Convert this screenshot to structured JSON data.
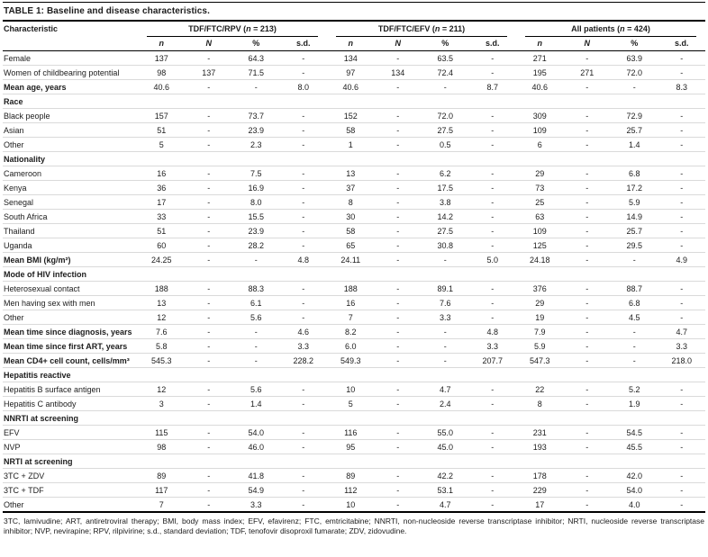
{
  "title": {
    "label": "TABLE 1:",
    "text": " Baseline and disease characteristics."
  },
  "header": {
    "first_col": "Characteristic",
    "groups": [
      {
        "prefix": "TDF/FTC/RPV (",
        "n": "n",
        "suffix": " = 213)"
      },
      {
        "prefix": "TDF/FTC/EFV (",
        "n": "n",
        "suffix": " = 211)"
      },
      {
        "prefix": "All patients (",
        "n": "n",
        "suffix": " = 424)"
      }
    ],
    "sub_headers": [
      {
        "label": "n",
        "key": "n",
        "italic": true
      },
      {
        "label": "N",
        "key": "N",
        "italic": true
      },
      {
        "label": "%",
        "key": "percent",
        "italic": false
      },
      {
        "label": "s.d.",
        "key": "sd",
        "italic": false
      }
    ]
  },
  "rows": [
    {
      "type": "data",
      "bold": false,
      "label": "Female",
      "values": [
        "137",
        "-",
        "64.3",
        "-",
        "134",
        "-",
        "63.5",
        "-",
        "271",
        "-",
        "63.9",
        "-"
      ]
    },
    {
      "type": "data",
      "bold": false,
      "label": "Women of childbearing potential",
      "values": [
        "98",
        "137",
        "71.5",
        "-",
        "97",
        "134",
        "72.4",
        "-",
        "195",
        "271",
        "72.0",
        "-"
      ]
    },
    {
      "type": "data",
      "bold": true,
      "label": "Mean age, years",
      "values": [
        "40.6",
        "-",
        "-",
        "8.0",
        "40.6",
        "-",
        "-",
        "8.7",
        "40.6",
        "-",
        "-",
        "8.3"
      ]
    },
    {
      "type": "section",
      "label": "Race"
    },
    {
      "type": "data",
      "bold": false,
      "label": "Black people",
      "values": [
        "157",
        "-",
        "73.7",
        "-",
        "152",
        "-",
        "72.0",
        "-",
        "309",
        "-",
        "72.9",
        "-"
      ]
    },
    {
      "type": "data",
      "bold": false,
      "label": "Asian",
      "values": [
        "51",
        "-",
        "23.9",
        "-",
        "58",
        "-",
        "27.5",
        "-",
        "109",
        "-",
        "25.7",
        "-"
      ]
    },
    {
      "type": "data",
      "bold": false,
      "label": "Other",
      "values": [
        "5",
        "-",
        "2.3",
        "-",
        "1",
        "-",
        "0.5",
        "-",
        "6",
        "-",
        "1.4",
        "-"
      ]
    },
    {
      "type": "section",
      "label": "Nationality"
    },
    {
      "type": "data",
      "bold": false,
      "label": "Cameroon",
      "values": [
        "16",
        "-",
        "7.5",
        "-",
        "13",
        "-",
        "6.2",
        "-",
        "29",
        "-",
        "6.8",
        "-"
      ]
    },
    {
      "type": "data",
      "bold": false,
      "label": "Kenya",
      "values": [
        "36",
        "-",
        "16.9",
        "-",
        "37",
        "-",
        "17.5",
        "-",
        "73",
        "-",
        "17.2",
        "-"
      ]
    },
    {
      "type": "data",
      "bold": false,
      "label": "Senegal",
      "values": [
        "17",
        "-",
        "8.0",
        "-",
        "8",
        "-",
        "3.8",
        "-",
        "25",
        "-",
        "5.9",
        "-"
      ]
    },
    {
      "type": "data",
      "bold": false,
      "label": "South Africa",
      "values": [
        "33",
        "-",
        "15.5",
        "-",
        "30",
        "-",
        "14.2",
        "-",
        "63",
        "-",
        "14.9",
        "-"
      ]
    },
    {
      "type": "data",
      "bold": false,
      "label": "Thailand",
      "values": [
        "51",
        "-",
        "23.9",
        "-",
        "58",
        "-",
        "27.5",
        "-",
        "109",
        "-",
        "25.7",
        "-"
      ]
    },
    {
      "type": "data",
      "bold": false,
      "label": "Uganda",
      "values": [
        "60",
        "-",
        "28.2",
        "-",
        "65",
        "-",
        "30.8",
        "-",
        "125",
        "-",
        "29.5",
        "-"
      ]
    },
    {
      "type": "data",
      "bold": true,
      "label": "Mean BMI (kg/m²)",
      "values": [
        "24.25",
        "-",
        "-",
        "4.8",
        "24.11",
        "-",
        "-",
        "5.0",
        "24.18",
        "-",
        "-",
        "4.9"
      ]
    },
    {
      "type": "section",
      "label": "Mode of HIV infection"
    },
    {
      "type": "data",
      "bold": false,
      "label": "Heterosexual contact",
      "values": [
        "188",
        "-",
        "88.3",
        "-",
        "188",
        "-",
        "89.1",
        "-",
        "376",
        "-",
        "88.7",
        "-"
      ]
    },
    {
      "type": "data",
      "bold": false,
      "label": "Men having sex with men",
      "values": [
        "13",
        "-",
        "6.1",
        "-",
        "16",
        "-",
        "7.6",
        "-",
        "29",
        "-",
        "6.8",
        "-"
      ]
    },
    {
      "type": "data",
      "bold": false,
      "label": "Other",
      "values": [
        "12",
        "-",
        "5.6",
        "-",
        "7",
        "-",
        "3.3",
        "-",
        "19",
        "-",
        "4.5",
        "-"
      ]
    },
    {
      "type": "data",
      "bold": true,
      "label": "Mean time since diagnosis, years",
      "values": [
        "7.6",
        "-",
        "-",
        "4.6",
        "8.2",
        "-",
        "-",
        "4.8",
        "7.9",
        "-",
        "-",
        "4.7"
      ]
    },
    {
      "type": "data",
      "bold": true,
      "label": "Mean time since first ART, years",
      "values": [
        "5.8",
        "-",
        "-",
        "3.3",
        "6.0",
        "-",
        "-",
        "3.3",
        "5.9",
        "-",
        "-",
        "3.3"
      ]
    },
    {
      "type": "data",
      "bold": true,
      "label": "Mean CD4+ cell count, cells/mm³",
      "values": [
        "545.3",
        "-",
        "-",
        "228.2",
        "549.3",
        "-",
        "-",
        "207.7",
        "547.3",
        "-",
        "-",
        "218.0"
      ]
    },
    {
      "type": "section",
      "label": "Hepatitis reactive"
    },
    {
      "type": "data",
      "bold": false,
      "label": "Hepatitis B surface antigen",
      "values": [
        "12",
        "-",
        "5.6",
        "-",
        "10",
        "-",
        "4.7",
        "-",
        "22",
        "-",
        "5.2",
        "-"
      ]
    },
    {
      "type": "data",
      "bold": false,
      "label": "Hepatitis C antibody",
      "values": [
        "3",
        "-",
        "1.4",
        "-",
        "5",
        "-",
        "2.4",
        "-",
        "8",
        "-",
        "1.9",
        "-"
      ]
    },
    {
      "type": "section",
      "label": "NNRTI at screening"
    },
    {
      "type": "data",
      "bold": false,
      "label": "EFV",
      "values": [
        "115",
        "-",
        "54.0",
        "-",
        "116",
        "-",
        "55.0",
        "-",
        "231",
        "-",
        "54.5",
        "-"
      ]
    },
    {
      "type": "data",
      "bold": false,
      "label": "NVP",
      "values": [
        "98",
        "-",
        "46.0",
        "-",
        "95",
        "-",
        "45.0",
        "-",
        "193",
        "-",
        "45.5",
        "-"
      ]
    },
    {
      "type": "section",
      "label": "NRTI at screening"
    },
    {
      "type": "data",
      "bold": false,
      "label": "3TC + ZDV",
      "values": [
        "89",
        "-",
        "41.8",
        "-",
        "89",
        "-",
        "42.2",
        "-",
        "178",
        "-",
        "42.0",
        "-"
      ]
    },
    {
      "type": "data",
      "bold": false,
      "label": "3TC + TDF",
      "values": [
        "117",
        "-",
        "54.9",
        "-",
        "112",
        "-",
        "53.1",
        "-",
        "229",
        "-",
        "54.0",
        "-"
      ]
    },
    {
      "type": "data",
      "bold": false,
      "label": "Other",
      "values": [
        "7",
        "-",
        "3.3",
        "-",
        "10",
        "-",
        "4.7",
        "-",
        "17",
        "-",
        "4.0",
        "-"
      ]
    }
  ],
  "footnote": "3TC, lamivudine; ART, antiretroviral therapy; BMI, body mass index; EFV, efavirenz; FTC, emtricitabine; NNRTI, non-nucleoside reverse transcriptase inhibitor; NRTI, nucleoside reverse transcriptase inhibitor; NVP, nevirapine; RPV, rilpivirine; s.d., standard deviation; TDF, tenofovir disoproxil fumarate; ZDV, zidovudine."
}
